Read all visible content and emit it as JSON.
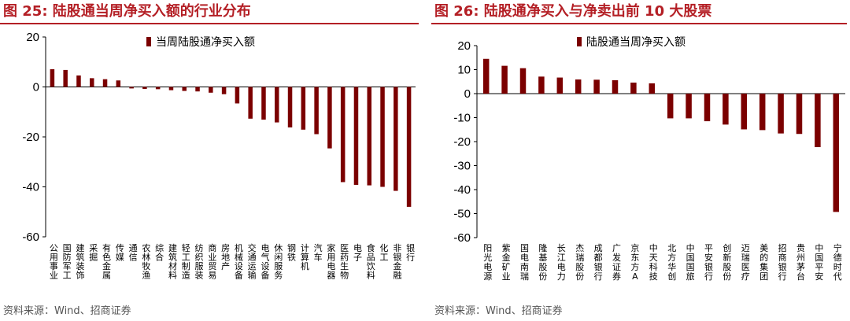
{
  "colors": {
    "accent": "#b41f25",
    "bar": "#7b0000"
  },
  "panels": [
    {
      "title": "图 25:  陆股通当周净买入额的行业分布",
      "source": "资料来源：Wind、招商证券",
      "chart_data": {
        "type": "bar",
        "title": "",
        "xlabel": "",
        "ylabel": "",
        "ylim": [
          -60,
          20
        ],
        "yticks": [
          20,
          0,
          -20,
          -40,
          -60
        ],
        "grid": false,
        "legend_position": "top-center",
        "categories": [
          "公用事业",
          "国防军工",
          "建筑装饰",
          "采掘",
          "有色金属",
          "传媒",
          "通信",
          "农林牧渔",
          "综合",
          "建筑材料",
          "轻工制造",
          "纺织服装",
          "商业贸易",
          "房地产",
          "机械设备",
          "交通运输",
          "电气设备",
          "休闲服务",
          "钢铁",
          "计算机",
          "汽车",
          "家用电器",
          "医药生物",
          "电子",
          "食品饮料",
          "化工",
          "非银金融",
          "银行"
        ],
        "series": [
          {
            "name": "当周陆股通净买入额",
            "values": [
              7.1,
              6.8,
              4.6,
              3.5,
              3.1,
              2.6,
              -0.6,
              -0.8,
              -0.9,
              -1.3,
              -1.6,
              -1.8,
              -2.3,
              -2.9,
              -6.6,
              -12.7,
              -13.1,
              -14.2,
              -16.2,
              -17.1,
              -18.9,
              -24.6,
              -38.1,
              -39.2,
              -39.4,
              -40.0,
              -41.6,
              -48.0
            ]
          }
        ]
      }
    },
    {
      "title": "图 26:  陆股通净买入与净卖出前 10 大股票",
      "source": "资料来源：Wind、招商证券",
      "chart_data": {
        "type": "bar",
        "title": "",
        "xlabel": "",
        "ylabel": "",
        "ylim": [
          -60,
          20
        ],
        "yticks": [
          20,
          10,
          0,
          -10,
          -20,
          -30,
          -40,
          -50,
          -60
        ],
        "grid": false,
        "legend_position": "top-center",
        "categories": [
          "阳光电源",
          "紫金矿业",
          "国电南瑞",
          "隆基股份",
          "长江电力",
          "杰瑞股份",
          "成都银行",
          "广发证券",
          "京东方A",
          "中天科技",
          "北方华创",
          "中国国旅",
          "平安银行",
          "创新股份",
          "迈瑞医疗",
          "美的集团",
          "招商银行",
          "贵州茅台",
          "中国平安",
          "宁德时代"
        ],
        "series": [
          {
            "name": "陆股通当周净买入额",
            "values": [
              14.5,
              11.6,
              10.6,
              7.1,
              6.7,
              5.9,
              5.8,
              5.6,
              4.6,
              4.3,
              -10.3,
              -10.3,
              -11.5,
              -12.9,
              -14.9,
              -15.2,
              -16.6,
              -16.8,
              -22.3,
              -49.3
            ]
          }
        ]
      }
    }
  ]
}
